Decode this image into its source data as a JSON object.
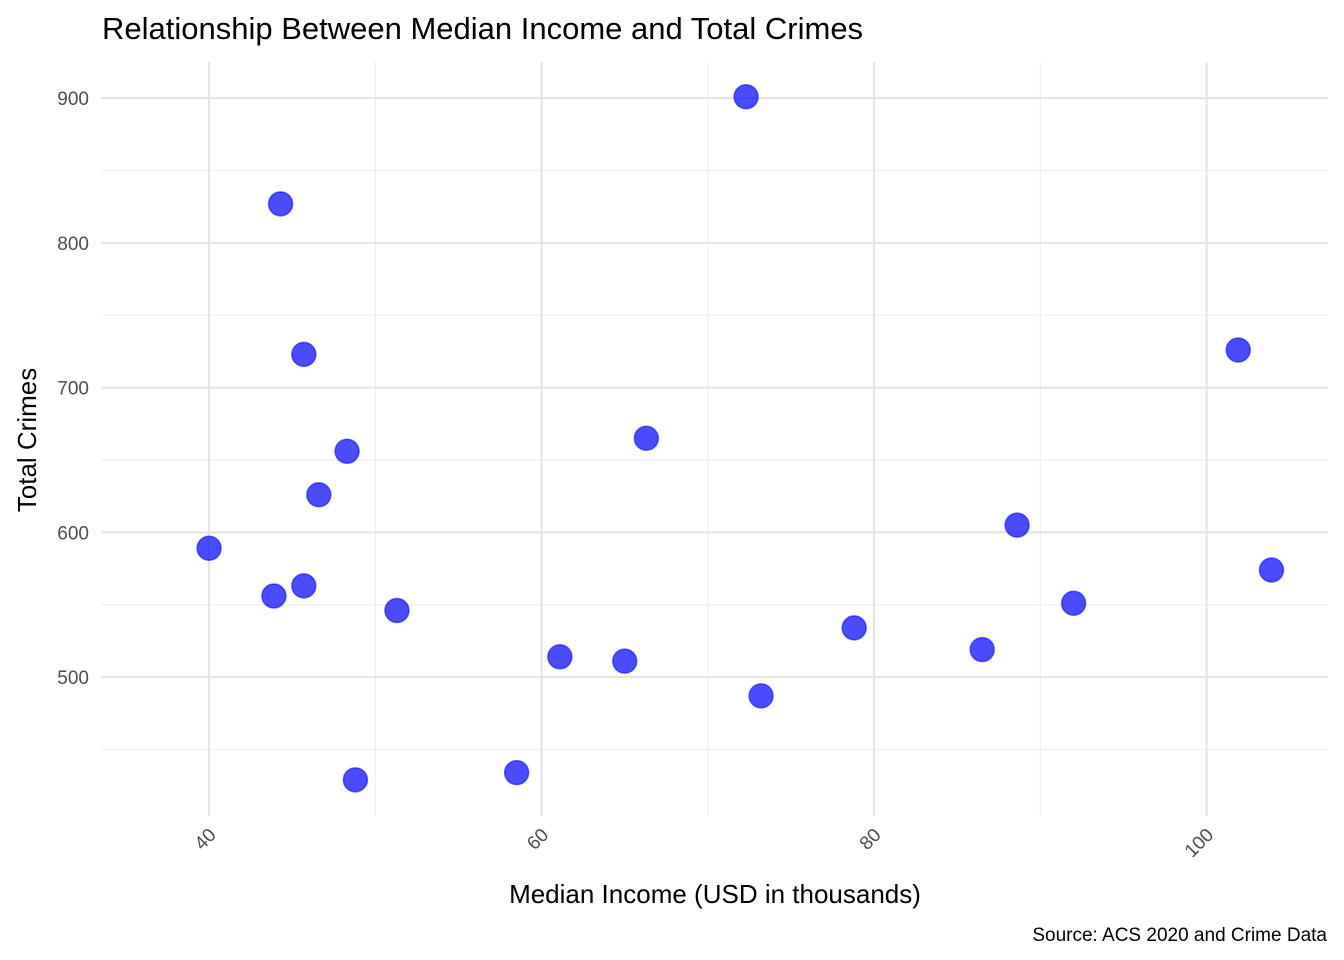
{
  "chart_data": {
    "type": "scatter",
    "title": "Relationship Between Median Income and Total Crimes",
    "xlabel": "Median Income (USD in thousands)",
    "ylabel": "Total Crimes",
    "caption": "Source: ACS 2020 and Crime Data",
    "xlim": [
      33.5,
      107.3
    ],
    "ylim": [
      404,
      925
    ],
    "x_ticks": [
      40,
      60,
      80,
      100
    ],
    "y_ticks": [
      500,
      600,
      700,
      800,
      900
    ],
    "x_minor_ticks": [
      50,
      70,
      90
    ],
    "y_minor_ticks": [
      450,
      550,
      650,
      750,
      850
    ],
    "grid": true,
    "point_color": "#0000ff",
    "point_opacity": 0.7,
    "points": [
      {
        "x": 40.0,
        "y": 589
      },
      {
        "x": 43.9,
        "y": 556
      },
      {
        "x": 44.3,
        "y": 827
      },
      {
        "x": 45.7,
        "y": 723
      },
      {
        "x": 45.7,
        "y": 563
      },
      {
        "x": 46.6,
        "y": 626
      },
      {
        "x": 48.3,
        "y": 656
      },
      {
        "x": 48.8,
        "y": 429
      },
      {
        "x": 51.3,
        "y": 546
      },
      {
        "x": 58.5,
        "y": 434
      },
      {
        "x": 61.1,
        "y": 514
      },
      {
        "x": 65.0,
        "y": 511
      },
      {
        "x": 66.3,
        "y": 665
      },
      {
        "x": 72.3,
        "y": 901
      },
      {
        "x": 73.2,
        "y": 487
      },
      {
        "x": 78.8,
        "y": 534
      },
      {
        "x": 86.5,
        "y": 519
      },
      {
        "x": 88.6,
        "y": 605
      },
      {
        "x": 92.0,
        "y": 551
      },
      {
        "x": 101.9,
        "y": 726
      },
      {
        "x": 103.9,
        "y": 574
      }
    ]
  }
}
